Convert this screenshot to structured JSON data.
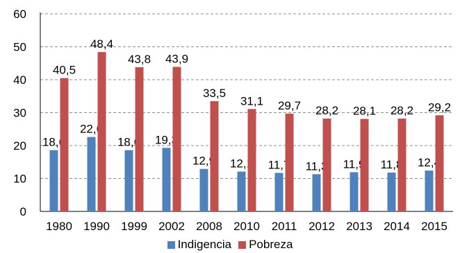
{
  "chart_data": {
    "type": "bar",
    "categories": [
      "1980",
      "1990",
      "1999",
      "2002",
      "2008",
      "2010",
      "2011",
      "2012",
      "2013",
      "2014",
      "2015"
    ],
    "series": [
      {
        "name": "Indigencia",
        "color": "#4f81bd",
        "values": [
          18.6,
          22.6,
          18.6,
          19.3,
          12.9,
          12.1,
          11.7,
          11.3,
          11.9,
          11.8,
          12.4
        ],
        "labels": [
          "18,6",
          "22,6",
          "18,6",
          "19,3",
          "12,9",
          "12,1",
          "11,7",
          "11,3",
          "11,9",
          "11,8",
          "12,4"
        ]
      },
      {
        "name": "Pobreza",
        "color": "#c0504d",
        "values": [
          40.5,
          48.4,
          43.8,
          43.9,
          33.5,
          31.1,
          29.7,
          28.2,
          28.1,
          28.2,
          29.2
        ],
        "labels": [
          "40,5",
          "48,4",
          "43,8",
          "43,9",
          "33,5",
          "31,1",
          "29,7",
          "28,2",
          "28,1",
          "28,2",
          "29,2"
        ]
      }
    ],
    "yticks": [
      "0",
      "10",
      "20",
      "30",
      "40",
      "50",
      "60"
    ],
    "ylim": [
      0,
      60
    ],
    "grid": "horizontal dashed",
    "legend_position": "bottom"
  }
}
